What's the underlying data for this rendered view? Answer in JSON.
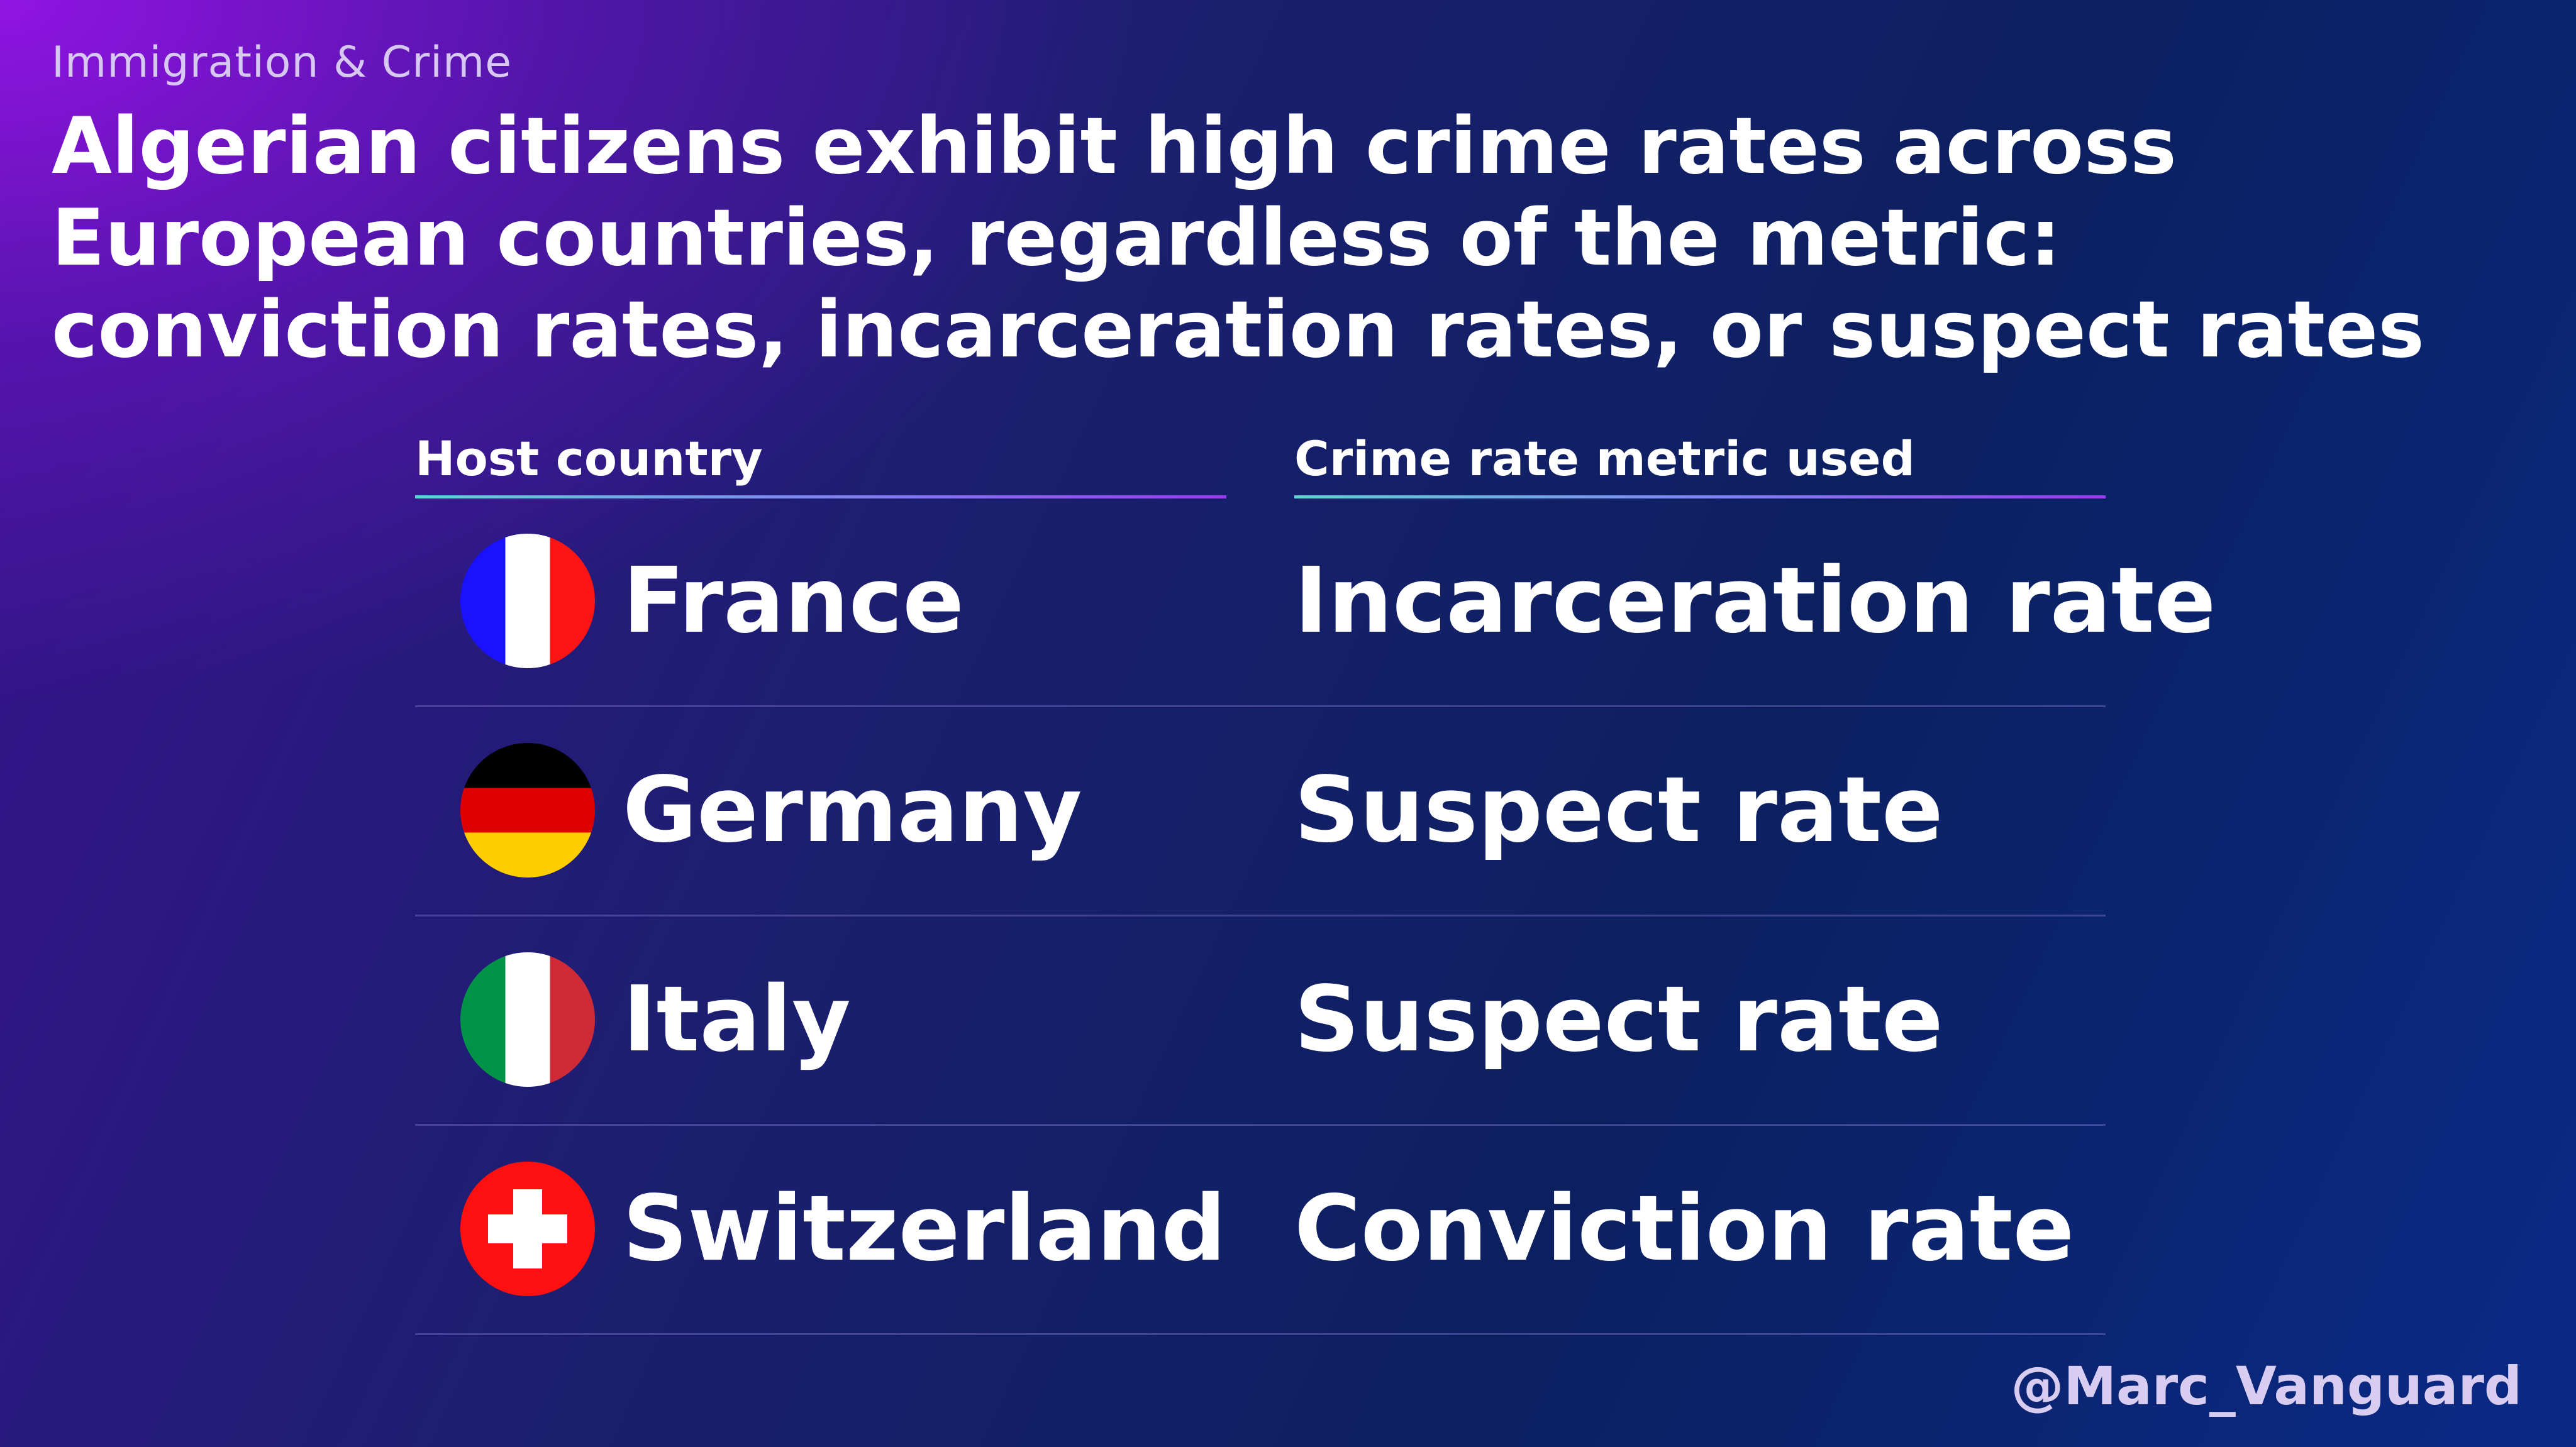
{
  "kicker": "Immigration & Crime",
  "headline": "Algerian citizens exhibit high crime rates across European countries, regardless of the metric: conviction rates, incarceration rates, or suspect rates",
  "table": {
    "headers": {
      "country": "Host country",
      "metric": "Crime rate metric used"
    },
    "rows": [
      {
        "country": "France",
        "metric": "Incarceration rate",
        "flag_icon": "france-flag-icon"
      },
      {
        "country": "Germany",
        "metric": "Suspect rate",
        "flag_icon": "germany-flag-icon"
      },
      {
        "country": "Italy",
        "metric": "Suspect rate",
        "flag_icon": "italy-flag-icon"
      },
      {
        "country": "Switzerland",
        "metric": "Conviction rate",
        "flag_icon": "switzerland-flag-icon"
      }
    ]
  },
  "handle": "@Marc_Vanguard"
}
